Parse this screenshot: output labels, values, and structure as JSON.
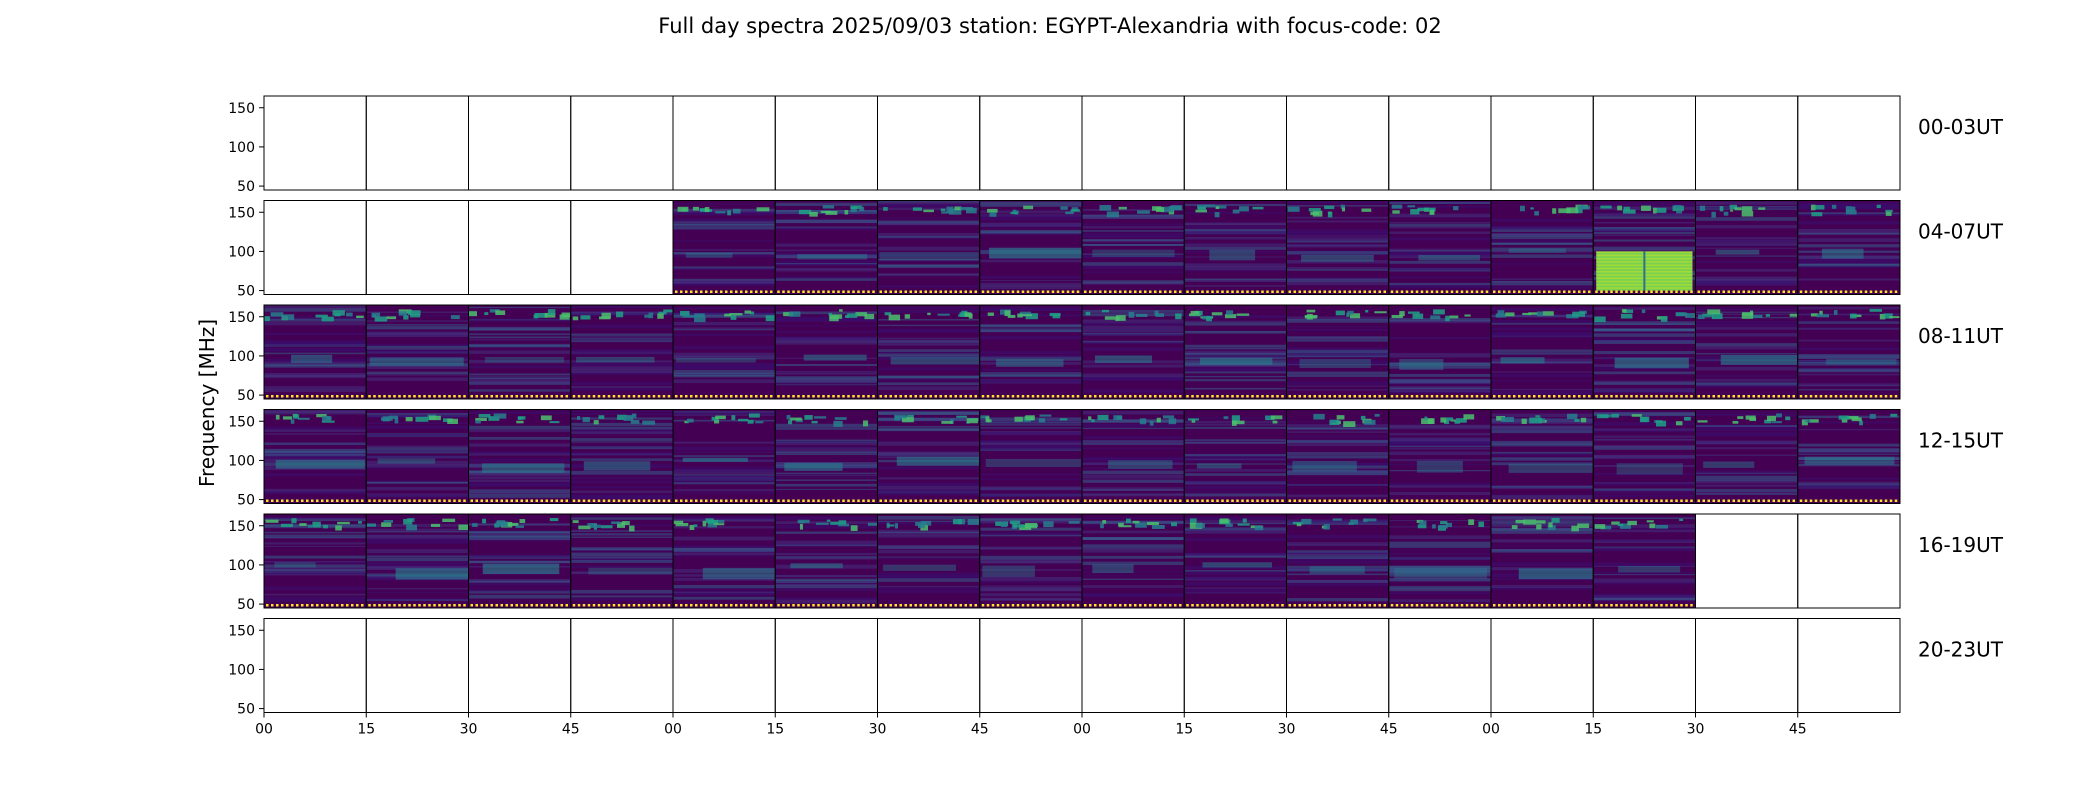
{
  "chart_data": {
    "type": "heatmap",
    "title": "Full day spectra 2025/09/03 station: EGYPT-Alexandria with focus-code: 02",
    "ylabel": "Frequency [MHz]",
    "xlabel": "",
    "y_ticks": [
      "150",
      "100",
      "50"
    ],
    "x_ticks": [
      "00",
      "15",
      "30",
      "45",
      "00",
      "15",
      "30",
      "45",
      "00",
      "15",
      "30",
      "45",
      "00",
      "15",
      "30",
      "45"
    ],
    "ylim": [
      45,
      165
    ],
    "panels_per_row": 16,
    "minutes_per_panel": 15,
    "colormap": "viridis",
    "colors": {
      "background_low": "#440154",
      "mid": "#31688e",
      "high": "#35b779",
      "peak": "#fde725",
      "marker_dots": "#fde725"
    },
    "rows": [
      {
        "label": "00-03UT",
        "panels_with_data": []
      },
      {
        "label": "04-07UT",
        "panels_with_data": [
          4,
          5,
          6,
          7,
          8,
          9,
          10,
          11,
          12,
          13,
          14,
          15
        ]
      },
      {
        "label": "08-11UT",
        "panels_with_data": [
          0,
          1,
          2,
          3,
          4,
          5,
          6,
          7,
          8,
          9,
          10,
          11,
          12,
          13,
          14,
          15
        ]
      },
      {
        "label": "12-15UT",
        "panels_with_data": [
          0,
          1,
          2,
          3,
          4,
          5,
          6,
          7,
          8,
          9,
          10,
          11,
          12,
          13,
          14,
          15
        ]
      },
      {
        "label": "16-19UT",
        "panels_with_data": [
          0,
          1,
          2,
          3,
          4,
          5,
          6,
          7,
          8,
          9,
          10,
          11,
          12,
          13
        ]
      },
      {
        "label": "20-23UT",
        "panels_with_data": []
      }
    ],
    "highlights": [
      {
        "row": 1,
        "panel": 13,
        "freq_range": [
          50,
          100
        ],
        "color": "#7ad151"
      }
    ]
  }
}
